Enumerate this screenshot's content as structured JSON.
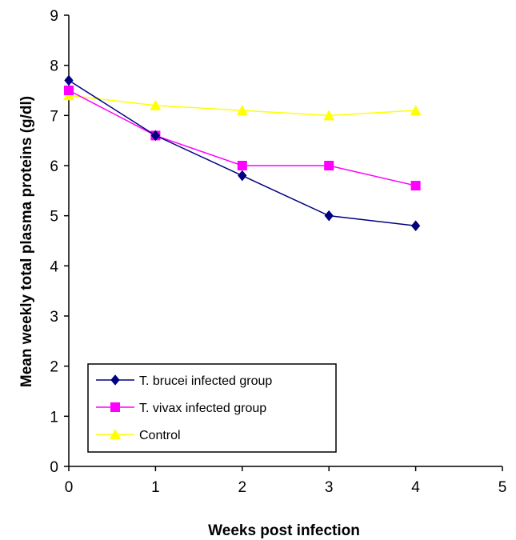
{
  "chart_data": {
    "type": "line",
    "title": "",
    "xlabel": "Weeks post infection",
    "ylabel": "Mean weekly total plasma proteins (g/dl)",
    "xlim": [
      0,
      5
    ],
    "ylim": [
      0,
      9
    ],
    "xticks": [
      "0",
      "1",
      "2",
      "3",
      "4",
      "5"
    ],
    "yticks": [
      "0",
      "1",
      "2",
      "3",
      "4",
      "5",
      "6",
      "7",
      "8",
      "9"
    ],
    "grid": false,
    "legend_position": "bottom-left",
    "series": [
      {
        "name": "T. brucei infected group",
        "color": "#000080",
        "marker": "diamond",
        "x": [
          0,
          1,
          2,
          3,
          4
        ],
        "values": [
          7.7,
          6.6,
          5.8,
          5.0,
          4.8
        ]
      },
      {
        "name": "T. vivax infected group",
        "color": "#ff00ff",
        "marker": "square",
        "x": [
          0,
          1,
          2,
          3,
          4
        ],
        "values": [
          7.5,
          6.6,
          6.0,
          6.0,
          5.6
        ]
      },
      {
        "name": "Control",
        "color": "#ffff00",
        "marker": "triangle",
        "x": [
          0,
          1,
          2,
          3,
          4
        ],
        "values": [
          7.4,
          7.2,
          7.1,
          7.0,
          7.1
        ]
      }
    ]
  }
}
